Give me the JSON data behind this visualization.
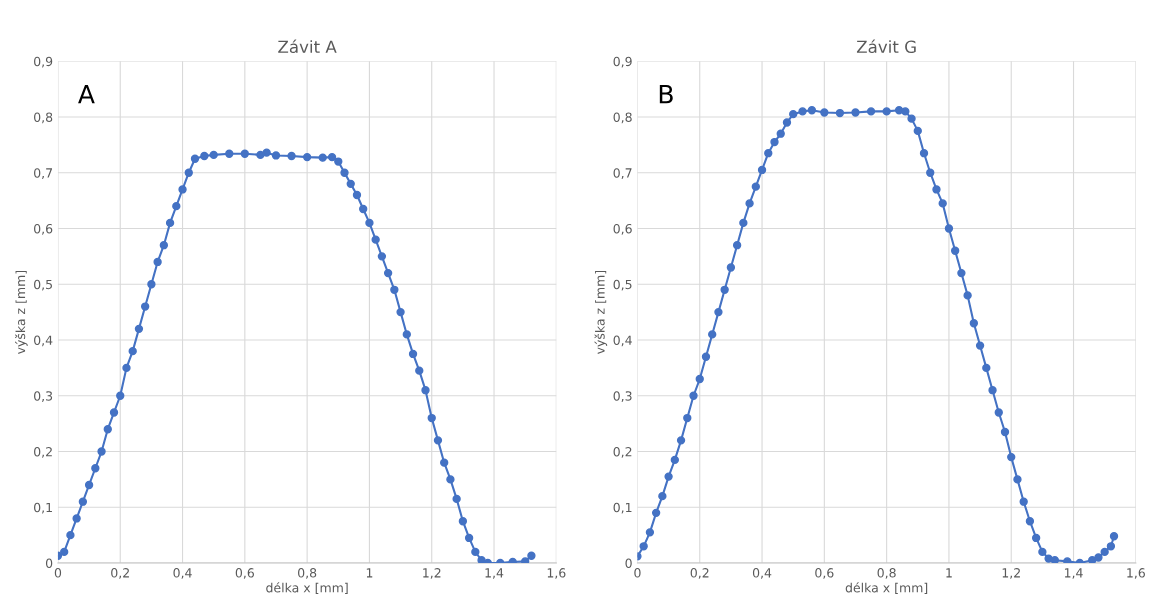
{
  "chart_data": [
    {
      "type": "line",
      "title": "Závit A",
      "xlabel": "délka x [mm]",
      "ylabel": "výška z [mm]",
      "annotations": [
        "A"
      ],
      "marker": "circle",
      "grid": true,
      "xlim": [
        0,
        1.6
      ],
      "xticks": [
        0,
        {
          "value": 0.2,
          "label": "0,2"
        },
        {
          "value": 0.4,
          "label": "0,4"
        },
        {
          "value": 0.6,
          "label": "0,6"
        },
        {
          "value": 0.8,
          "label": "0,8"
        },
        1,
        {
          "value": 1.2,
          "label": "1,2"
        },
        {
          "value": 1.4,
          "label": "1,4"
        },
        {
          "value": 1.6,
          "label": "1,6"
        }
      ],
      "ylim": [
        0,
        0.9
      ],
      "yticks": [
        0,
        {
          "value": 0.1,
          "label": "0,1"
        },
        {
          "value": 0.2,
          "label": "0,2"
        },
        {
          "value": 0.3,
          "label": "0,3"
        },
        {
          "value": 0.4,
          "label": "0,4"
        },
        {
          "value": 0.5,
          "label": "0,5"
        },
        {
          "value": 0.6,
          "label": "0,6"
        },
        {
          "value": 0.7,
          "label": "0,7"
        },
        {
          "value": 0.8,
          "label": "0,8"
        },
        {
          "value": 0.9,
          "label": "0,9"
        }
      ],
      "series": [
        {
          "color": "#4472c4",
          "x": [
            0,
            0.02,
            0.04,
            0.06,
            0.08,
            0.1,
            0.12,
            0.14,
            0.16,
            0.18,
            0.2,
            0.22,
            0.24,
            0.26,
            0.28,
            0.3,
            0.32,
            0.34,
            0.36,
            0.38,
            0.4,
            0.42,
            0.44,
            0.47,
            0.5,
            0.55,
            0.6,
            0.65,
            0.67,
            0.7,
            0.75,
            0.8,
            0.85,
            0.88,
            0.9,
            0.92,
            0.94,
            0.96,
            0.98,
            1.0,
            1.02,
            1.04,
            1.06,
            1.08,
            1.1,
            1.12,
            1.14,
            1.16,
            1.18,
            1.2,
            1.22,
            1.24,
            1.26,
            1.28,
            1.3,
            1.32,
            1.34,
            1.36,
            1.38,
            1.42,
            1.46,
            1.5,
            1.52
          ],
          "values": [
            0.013,
            0.02,
            0.05,
            0.08,
            0.11,
            0.14,
            0.17,
            0.2,
            0.24,
            0.27,
            0.3,
            0.35,
            0.38,
            0.42,
            0.46,
            0.5,
            0.54,
            0.57,
            0.61,
            0.64,
            0.67,
            0.7,
            0.725,
            0.73,
            0.732,
            0.734,
            0.734,
            0.732,
            0.736,
            0.731,
            0.73,
            0.728,
            0.727,
            0.728,
            0.72,
            0.7,
            0.68,
            0.66,
            0.635,
            0.61,
            0.58,
            0.55,
            0.52,
            0.49,
            0.45,
            0.41,
            0.375,
            0.345,
            0.31,
            0.26,
            0.22,
            0.18,
            0.15,
            0.115,
            0.075,
            0.045,
            0.02,
            0.005,
            0.0,
            0.0,
            0.002,
            0.003,
            0.013
          ]
        }
      ]
    },
    {
      "type": "line",
      "title": "Závit G",
      "xlabel": "délka x [mm]",
      "ylabel": "výška z [mm]",
      "annotations": [
        "B"
      ],
      "marker": "circle",
      "grid": true,
      "xlim": [
        0,
        1.6
      ],
      "xticks": [
        0,
        {
          "value": 0.2,
          "label": "0,2"
        },
        {
          "value": 0.4,
          "label": "0,4"
        },
        {
          "value": 0.6,
          "label": "0,6"
        },
        {
          "value": 0.8,
          "label": "0,8"
        },
        1,
        {
          "value": 1.2,
          "label": "1,2"
        },
        {
          "value": 1.4,
          "label": "1,4"
        },
        {
          "value": 1.6,
          "label": "1,6"
        }
      ],
      "ylim": [
        0,
        0.9
      ],
      "yticks": [
        0,
        {
          "value": 0.1,
          "label": "0,1"
        },
        {
          "value": 0.2,
          "label": "0,2"
        },
        {
          "value": 0.3,
          "label": "0,3"
        },
        {
          "value": 0.4,
          "label": "0,4"
        },
        {
          "value": 0.5,
          "label": "0,5"
        },
        {
          "value": 0.6,
          "label": "0,6"
        },
        {
          "value": 0.7,
          "label": "0,7"
        },
        {
          "value": 0.8,
          "label": "0,8"
        },
        {
          "value": 0.9,
          "label": "0,9"
        }
      ],
      "series": [
        {
          "color": "#4472c4",
          "x": [
            0,
            0.02,
            0.04,
            0.06,
            0.08,
            0.1,
            0.12,
            0.14,
            0.16,
            0.18,
            0.2,
            0.22,
            0.24,
            0.26,
            0.28,
            0.3,
            0.32,
            0.34,
            0.36,
            0.38,
            0.4,
            0.42,
            0.44,
            0.46,
            0.48,
            0.5,
            0.53,
            0.56,
            0.6,
            0.65,
            0.7,
            0.75,
            0.8,
            0.84,
            0.86,
            0.88,
            0.9,
            0.92,
            0.94,
            0.96,
            0.98,
            1.0,
            1.02,
            1.04,
            1.06,
            1.08,
            1.1,
            1.12,
            1.14,
            1.16,
            1.18,
            1.2,
            1.22,
            1.24,
            1.26,
            1.28,
            1.3,
            1.32,
            1.34,
            1.38,
            1.42,
            1.46,
            1.48,
            1.5,
            1.52,
            1.53
          ],
          "values": [
            0.012,
            0.03,
            0.055,
            0.09,
            0.12,
            0.155,
            0.185,
            0.22,
            0.26,
            0.3,
            0.33,
            0.37,
            0.41,
            0.45,
            0.49,
            0.53,
            0.57,
            0.61,
            0.645,
            0.675,
            0.705,
            0.735,
            0.755,
            0.77,
            0.79,
            0.805,
            0.81,
            0.812,
            0.808,
            0.807,
            0.808,
            0.81,
            0.81,
            0.812,
            0.81,
            0.797,
            0.775,
            0.735,
            0.7,
            0.67,
            0.645,
            0.6,
            0.56,
            0.52,
            0.48,
            0.43,
            0.39,
            0.35,
            0.31,
            0.27,
            0.235,
            0.19,
            0.15,
            0.11,
            0.075,
            0.045,
            0.02,
            0.008,
            0.005,
            0.003,
            0.0,
            0.005,
            0.01,
            0.02,
            0.03,
            0.048
          ]
        }
      ]
    }
  ]
}
